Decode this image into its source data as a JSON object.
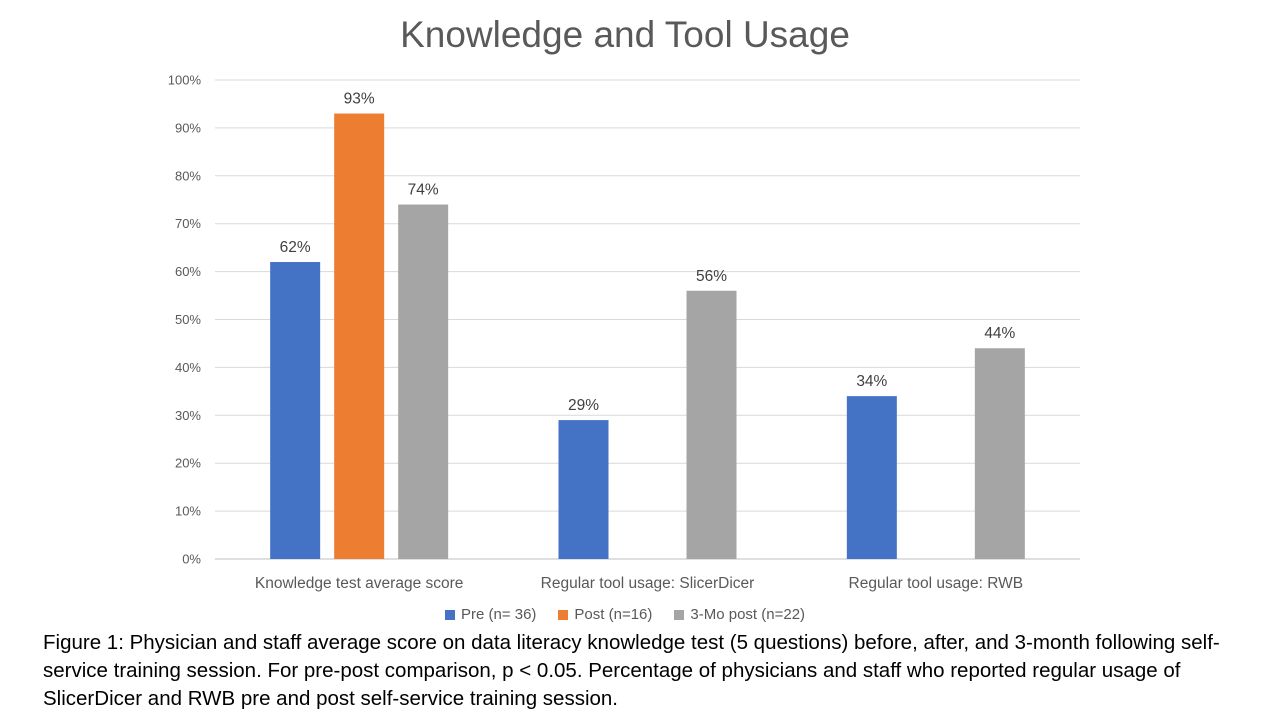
{
  "chart_data": {
    "type": "bar",
    "title": "Knowledge and Tool Usage",
    "categories": [
      "Knowledge test average score",
      "Regular tool usage: SlicerDicer",
      "Regular tool usage: RWB"
    ],
    "series": [
      {
        "name": "Pre (n= 36)",
        "color": "#4472C4",
        "values": [
          62,
          29,
          34
        ],
        "labels": [
          "62%",
          "29%",
          "34%"
        ]
      },
      {
        "name": "Post (n=16)",
        "color": "#ED7D31",
        "values": [
          93,
          null,
          null
        ],
        "labels": [
          "93%",
          "",
          ""
        ]
      },
      {
        "name": "3-Mo post (n=22)",
        "color": "#A5A5A5",
        "values": [
          74,
          56,
          44
        ],
        "labels": [
          "74%",
          "56%",
          "44%"
        ]
      }
    ],
    "ylim": [
      0,
      100
    ],
    "yticks": [
      "0%",
      "10%",
      "20%",
      "30%",
      "40%",
      "50%",
      "60%",
      "70%",
      "80%",
      "90%",
      "100%"
    ],
    "grid": true,
    "legend_position": "bottom"
  },
  "caption": "Figure 1: Physician and staff average score on data literacy knowledge test (5 questions) before, after, and 3-month following self-service training session. For pre-post comparison, p < 0.05. Percentage of physicians and staff who reported regular usage of SlicerDicer and RWB pre and post self-service training session."
}
